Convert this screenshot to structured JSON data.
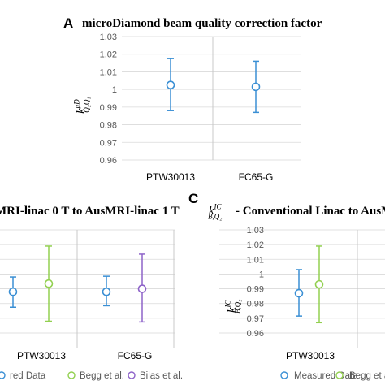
{
  "colors": {
    "measured": "#3a8fd4",
    "begg": "#92d050",
    "bilas": "#8e63c9",
    "axis_text": "#595959",
    "grid": "#d9d9d9",
    "divider": "#c8c8c8"
  },
  "chart_data": [
    {
      "panel_letter": "A",
      "title": "microDiamond beam quality correction factor",
      "ylabel": {
        "base": "k",
        "sup": "μD",
        "sub": "Q₂Q₁"
      },
      "type": "scatter",
      "categories": [
        "PTW30013",
        "FC65-G"
      ],
      "ylim": [
        0.96,
        1.03
      ],
      "yticks": [
        "0.96",
        "0.97",
        "0.98",
        "0.99",
        "1",
        "1.01",
        "1.02",
        "1.03"
      ],
      "series": [
        {
          "key": "measured",
          "values": [
            1.0025,
            1.0015
          ],
          "err_low": [
            0.988,
            0.987
          ],
          "err_high": [
            1.0175,
            1.016
          ]
        }
      ],
      "grid": true
    },
    {
      "panel_letter": "",
      "title": "MRI-linac 0 T to AusMRI-linac 1 T",
      "type": "scatter",
      "categories": [
        "PTW30013",
        "FC65-G"
      ],
      "ylim": [
        0.96,
        1.03
      ],
      "series": [
        {
          "key": "measured",
          "name": "red Data",
          "values": [
            0.988,
            0.988
          ],
          "err_low": [
            0.9775,
            0.9785
          ],
          "err_high": [
            0.998,
            0.9985
          ]
        },
        {
          "key": "begg",
          "name": "Begg et al.",
          "values": [
            0.9935,
            null
          ],
          "err_low": [
            0.968,
            null
          ],
          "err_high": [
            1.019,
            null
          ]
        },
        {
          "key": "bilas",
          "name": "Bilas et al.",
          "values": [
            null,
            0.99
          ],
          "err_low": [
            null,
            0.9675
          ],
          "err_high": [
            null,
            1.0135
          ]
        }
      ],
      "grid": true
    },
    {
      "panel_letter": "C",
      "title": "- Conventional Linac to AusMR",
      "title_prefix": {
        "base": "k",
        "sup": "IC",
        "sub": "B,Q₂"
      },
      "ylabel": {
        "base": "k",
        "sup": "IC",
        "sub": "B,Q₂"
      },
      "type": "scatter",
      "categories": [
        "PTW30013"
      ],
      "ylim": [
        0.96,
        1.03
      ],
      "yticks": [
        "0.96",
        "0.97",
        "0.98",
        "0.99",
        "1",
        "1.01",
        "1.02",
        "1.03"
      ],
      "series": [
        {
          "key": "measured",
          "name": "Measured Data",
          "values": [
            0.987
          ],
          "err_low": [
            0.9715
          ],
          "err_high": [
            1.003
          ]
        },
        {
          "key": "begg",
          "name": "Begg et al.",
          "values": [
            0.993
          ],
          "err_low": [
            0.967
          ],
          "err_high": [
            1.019
          ]
        }
      ],
      "grid": true
    }
  ]
}
